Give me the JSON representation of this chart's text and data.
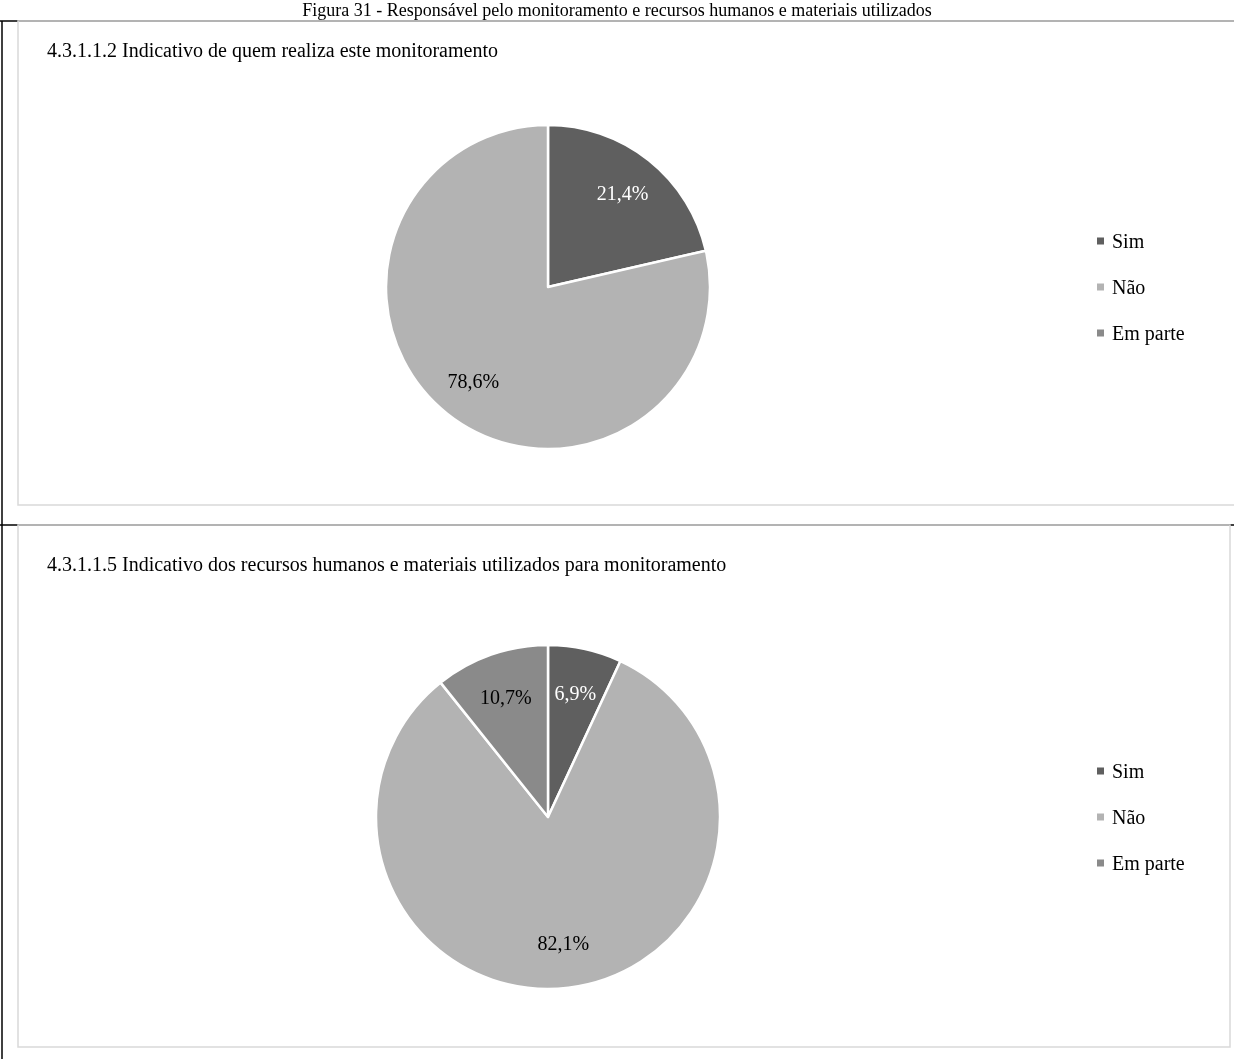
{
  "chart_data": [
    {
      "type": "pie",
      "title": "4.3.1.1.2 Indicativo de quem realiza este monitoramento",
      "annotations": [
        "Figura 31 - Responsável pelo monitoramento e recursos humanos e materiais utilizados"
      ],
      "categories": [
        "Sim",
        "Não",
        "Em parte"
      ],
      "values": [
        21.4,
        78.6,
        0
      ],
      "colors": [
        "#5f5f5f",
        "#b3b3b3",
        "#8a8a8a"
      ],
      "value_labels": [
        "21,4%",
        "78,6%",
        null
      ],
      "legend": "right"
    },
    {
      "type": "pie",
      "title": "4.3.1.1.5 Indicativo dos recursos humanos e materiais utilizados para monitoramento",
      "categories": [
        "Sim",
        "Não",
        "Em parte"
      ],
      "values": [
        6.9,
        82.1,
        10.7
      ],
      "colors": [
        "#5f5f5f",
        "#b3b3b3",
        "#8a8a8a"
      ],
      "value_labels": [
        "6,9%",
        "82,1%",
        "10,7%"
      ],
      "legend": "right"
    }
  ]
}
